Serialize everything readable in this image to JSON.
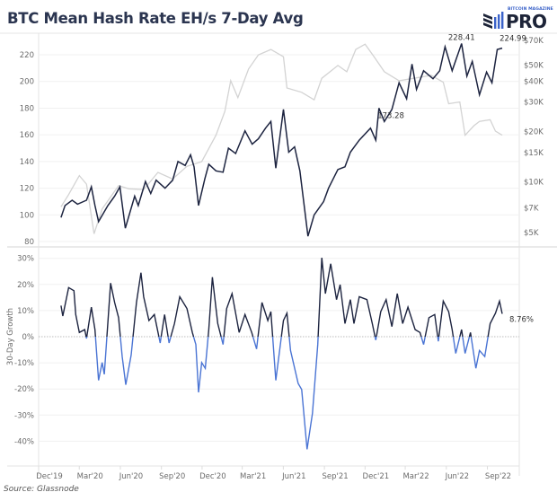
{
  "header": {
    "title": "BTC Mean Hash Rate EH/s 7-Day Avg"
  },
  "logo": {
    "brand": "BITCOIN MAGAZINE",
    "name": "PRO",
    "text_color": "#1d2438",
    "accent": "#3a62c9"
  },
  "source": "Source: Glassnode",
  "chart_data": [
    {
      "type": "line",
      "title": "BTC Mean Hash Rate EH/s 7-Day Avg",
      "grid": true,
      "y_ticks": [
        "80",
        "100",
        "120",
        "140",
        "160",
        "180",
        "200",
        "220"
      ],
      "y_tick_values": [
        80,
        100,
        120,
        140,
        160,
        180,
        200,
        220
      ],
      "ylim": [
        80,
        232
      ],
      "y2_scale": "log",
      "y2_ticks": [
        "$5K",
        "$7K",
        "$10K",
        "$15K",
        "$20K",
        "$30K",
        "$40K",
        "$50K",
        "$70K"
      ],
      "y2_tick_values": [
        5000,
        7000,
        10000,
        15000,
        20000,
        30000,
        40000,
        50000,
        70000
      ],
      "annotations": [
        {
          "text": "228.41",
          "date": "2022-06-11",
          "value": 228.41
        },
        {
          "text": "224.99",
          "date": "2022-09-10",
          "value": 224.99
        },
        {
          "text": "173.28",
          "date": "2022-01-06",
          "value": 173.28
        }
      ],
      "series": [
        {
          "key": "hash_rate",
          "axis": "left",
          "color": "#1d2440",
          "x": [
            "2019-12-27",
            "2020-01-05",
            "2020-01-21",
            "2020-02-02",
            "2020-02-22",
            "2020-03-04",
            "2020-03-12",
            "2020-03-20",
            "2020-04-10",
            "2020-04-25",
            "2020-05-07",
            "2020-05-19",
            "2020-06-09",
            "2020-06-17",
            "2020-07-03",
            "2020-07-15",
            "2020-07-27",
            "2020-08-16",
            "2020-09-02",
            "2020-09-14",
            "2020-09-30",
            "2020-10-12",
            "2020-10-20",
            "2020-10-30",
            "2020-11-13",
            "2020-11-22",
            "2020-12-08",
            "2020-12-24",
            "2021-01-05",
            "2021-01-21",
            "2021-02-11",
            "2021-02-27",
            "2021-03-13",
            "2021-03-29",
            "2021-04-10",
            "2021-04-21",
            "2021-05-08",
            "2021-05-20",
            "2021-06-02",
            "2021-06-14",
            "2021-07-02",
            "2021-07-16",
            "2021-08-06",
            "2021-08-17",
            "2021-09-07",
            "2021-09-23",
            "2021-10-05",
            "2021-10-25",
            "2021-11-19",
            "2021-12-01",
            "2021-12-08",
            "2021-12-20",
            "2022-01-06",
            "2022-01-22",
            "2022-02-08",
            "2022-02-20",
            "2022-03-02",
            "2022-03-18",
            "2022-04-08",
            "2022-04-23",
            "2022-05-05",
            "2022-05-21",
            "2022-06-11",
            "2022-06-23",
            "2022-07-05",
            "2022-07-21",
            "2022-08-06",
            "2022-08-18",
            "2022-08-30",
            "2022-09-10"
          ],
          "y": [
            98,
            107,
            111,
            108,
            111,
            121,
            107,
            95,
            107,
            114,
            121,
            90,
            114,
            107,
            125,
            116,
            126,
            120,
            126,
            140,
            137,
            145,
            136,
            107,
            127,
            138,
            133,
            132,
            150,
            146,
            163,
            153,
            157,
            165,
            170,
            135,
            179,
            147,
            151,
            133,
            84,
            100,
            110,
            120,
            134,
            136,
            147,
            156,
            165,
            156,
            180,
            170,
            179,
            199,
            187,
            213,
            194,
            208,
            202,
            208,
            226,
            208,
            228.41,
            204,
            215,
            190,
            207,
            199,
            224,
            224.99
          ]
        },
        {
          "key": "btc_price",
          "axis": "right",
          "color": "#d3d3d3",
          "x": [
            "2019-12-27",
            "2020-01-13",
            "2020-02-06",
            "2020-02-22",
            "2020-03-10",
            "2020-03-28",
            "2020-05-04",
            "2020-05-27",
            "2020-06-29",
            "2020-07-31",
            "2020-09-02",
            "2020-10-04",
            "2020-11-06",
            "2020-12-08",
            "2020-12-28",
            "2021-01-10",
            "2021-01-26",
            "2021-02-19",
            "2021-03-13",
            "2021-04-10",
            "2021-05-08",
            "2021-05-16",
            "2021-06-18",
            "2021-07-16",
            "2021-08-02",
            "2021-09-07",
            "2021-09-27",
            "2021-10-17",
            "2021-11-07",
            "2021-11-27",
            "2021-12-20",
            "2022-01-22",
            "2022-02-24",
            "2022-04-04",
            "2022-05-01",
            "2022-05-13",
            "2022-06-07",
            "2022-06-19",
            "2022-07-09",
            "2022-07-21",
            "2022-08-14",
            "2022-08-26",
            "2022-09-10"
          ],
          "y": [
            7100,
            8400,
            10900,
            9700,
            4900,
            6900,
            9500,
            9100,
            9000,
            11400,
            10400,
            12400,
            13200,
            19000,
            26400,
            40200,
            31900,
            47300,
            57400,
            61800,
            55900,
            36400,
            34300,
            30900,
            41600,
            49600,
            45500,
            61800,
            66500,
            55900,
            45500,
            40200,
            41600,
            43300,
            39400,
            29300,
            30000,
            19000,
            21700,
            23000,
            23500,
            20100,
            19000
          ]
        }
      ]
    },
    {
      "type": "line",
      "ylabel": "30-Day Growth",
      "grid": true,
      "y_ticks": [
        "-40%",
        "-30%",
        "-20%",
        "-10%",
        "0%",
        "10%",
        "20%",
        "30%"
      ],
      "y_tick_values": [
        -40,
        -30,
        -20,
        -10,
        0,
        10,
        20,
        30
      ],
      "ylim": [
        -45,
        33
      ],
      "x_ticks": [
        "Dec'19",
        "Mar'20",
        "Jun'20",
        "Sep'20",
        "Dec'20",
        "Mar'21",
        "Jun'21",
        "Sep'21",
        "Dec'21",
        "Mar'22",
        "Jun'22",
        "Sep'22"
      ],
      "x_tick_dates": [
        "2019-12-01",
        "2020-03-01",
        "2020-06-01",
        "2020-09-01",
        "2020-12-01",
        "2021-03-01",
        "2021-06-01",
        "2021-09-01",
        "2021-12-01",
        "2022-03-01",
        "2022-06-01",
        "2022-09-01"
      ],
      "positive_color": "#1d2440",
      "negative_color": "#4a74d4",
      "annotations": [
        {
          "text": "8.76%",
          "date": "2022-09-10",
          "value": 8.76
        }
      ],
      "series": [
        {
          "key": "growth_30d",
          "x": [
            "2019-12-27",
            "2019-12-31",
            "2020-01-13",
            "2020-01-25",
            "2020-01-29",
            "2020-02-06",
            "2020-02-18",
            "2020-02-22",
            "2020-03-04",
            "2020-03-12",
            "2020-03-20",
            "2020-03-28",
            "2020-04-02",
            "2020-04-16",
            "2020-04-25",
            "2020-05-04",
            "2020-05-12",
            "2020-05-20",
            "2020-06-01",
            "2020-06-13",
            "2020-06-23",
            "2020-06-29",
            "2020-07-11",
            "2020-07-23",
            "2020-08-05",
            "2020-08-15",
            "2020-08-25",
            "2020-09-06",
            "2020-09-18",
            "2020-10-04",
            "2020-10-16",
            "2020-10-24",
            "2020-10-30",
            "2020-11-06",
            "2020-11-14",
            "2020-11-22",
            "2020-11-30",
            "2020-12-12",
            "2020-12-24",
            "2021-01-01",
            "2021-01-13",
            "2021-01-29",
            "2021-02-11",
            "2021-02-26",
            "2021-03-09",
            "2021-03-21",
            "2021-04-03",
            "2021-04-10",
            "2021-04-21",
            "2021-05-08",
            "2021-05-16",
            "2021-05-24",
            "2021-06-10",
            "2021-06-18",
            "2021-06-30",
            "2021-07-12",
            "2021-07-24",
            "2021-08-02",
            "2021-08-10",
            "2021-08-22",
            "2021-09-04",
            "2021-09-12",
            "2021-09-23",
            "2021-10-05",
            "2021-10-13",
            "2021-10-25",
            "2021-11-11",
            "2021-11-23",
            "2021-12-01",
            "2021-12-12",
            "2021-12-24",
            "2022-01-06",
            "2022-01-18",
            "2022-01-30",
            "2022-02-11",
            "2022-02-27",
            "2022-03-10",
            "2022-03-18",
            "2022-03-30",
            "2022-04-12",
            "2022-04-20",
            "2022-05-01",
            "2022-05-13",
            "2022-05-21",
            "2022-05-29",
            "2022-06-11",
            "2022-06-19",
            "2022-07-01",
            "2022-07-13",
            "2022-07-21",
            "2022-08-02",
            "2022-08-14",
            "2022-08-26",
            "2022-09-04",
            "2022-09-10"
          ],
          "y": [
            11.9,
            7.9,
            18.8,
            17.6,
            8.5,
            1.6,
            2.7,
            -0.7,
            11.3,
            2.7,
            -16.7,
            -9.9,
            -14.4,
            20.5,
            13.1,
            7.3,
            -7.6,
            -18.4,
            -7.0,
            13.1,
            24.5,
            15.3,
            6.2,
            8.5,
            -2.4,
            8.5,
            -2.4,
            5.0,
            15.3,
            10.8,
            1.6,
            -3.0,
            -21.3,
            -9.9,
            -12.1,
            2.7,
            22.8,
            5.0,
            -3.0,
            10.8,
            16.5,
            1.6,
            8.5,
            1.6,
            -4.7,
            13.1,
            6.2,
            9.6,
            -16.7,
            6.2,
            9.0,
            -5.3,
            -17.9,
            -20.2,
            -43.1,
            -29.3,
            -3.0,
            30.2,
            16.5,
            27.9,
            14.2,
            19.9,
            5.0,
            14.2,
            5.0,
            15.3,
            14.2,
            5.0,
            -1.3,
            9.6,
            14.2,
            3.9,
            16.5,
            5.0,
            11.3,
            2.7,
            1.6,
            -3.0,
            7.3,
            8.5,
            -1.8,
            13.6,
            9.6,
            2.7,
            -6.4,
            2.7,
            -6.4,
            1.6,
            -12.1,
            -5.3,
            -7.6,
            5.0,
            9.0,
            13.6,
            8.76
          ]
        }
      ]
    }
  ]
}
